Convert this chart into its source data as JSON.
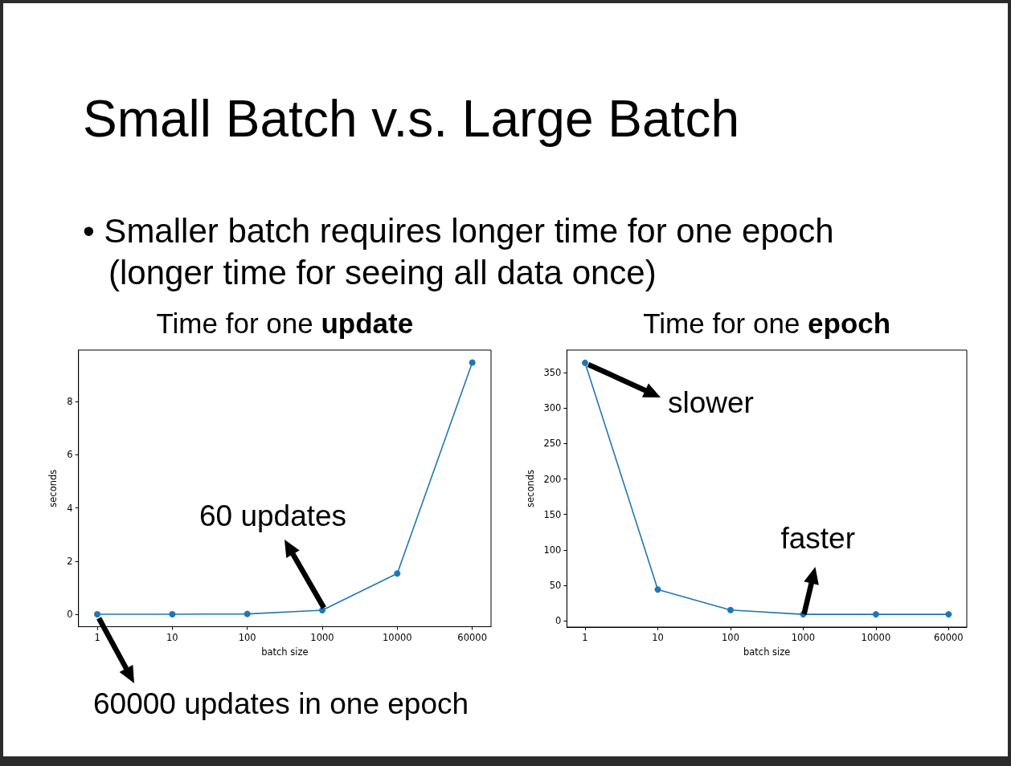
{
  "chart_data": [
    {
      "type": "other",
      "title": "Small Batch v.s. Large Batch",
      "annotations": [
        "• Smaller batch requires longer time for one epoch (longer time for seeing all data once)"
      ]
    },
    {
      "type": "line",
      "title": "Time for one update",
      "categories": [
        "1",
        "10",
        "100",
        "1000",
        "10000",
        "60000"
      ],
      "values": [
        0,
        0,
        0.01,
        0.15,
        1.53,
        9.47
      ],
      "color": "#1f77b4",
      "xlabel": "batch size",
      "ylabel": "seconds",
      "ylim": [
        -0.47,
        9.94
      ],
      "yticks": [
        0,
        2,
        4,
        6,
        8
      ],
      "marker": "circle",
      "line_style": "solid",
      "annotations": [
        {
          "text": "60 updates",
          "x": "1000",
          "y": 0.15
        },
        {
          "text": "60000 updates in one epoch",
          "x": "1",
          "y": 0
        }
      ]
    },
    {
      "type": "line",
      "title": "Time for one epoch",
      "categories": [
        "1",
        "10",
        "100",
        "1000",
        "10000",
        "60000"
      ],
      "values": [
        364,
        44,
        15,
        9,
        9,
        9
      ],
      "color": "#1f77b4",
      "xlabel": "batch size",
      "ylabel": "seconds",
      "ylim": [
        -9,
        382
      ],
      "yticks": [
        0,
        50,
        100,
        150,
        200,
        250,
        300,
        350
      ],
      "marker": "circle",
      "line_style": "solid",
      "annotations": [
        {
          "text": "slower",
          "x": "1",
          "y": 364
        },
        {
          "text": "faster",
          "x": "1000",
          "y": 9
        }
      ]
    }
  ]
}
